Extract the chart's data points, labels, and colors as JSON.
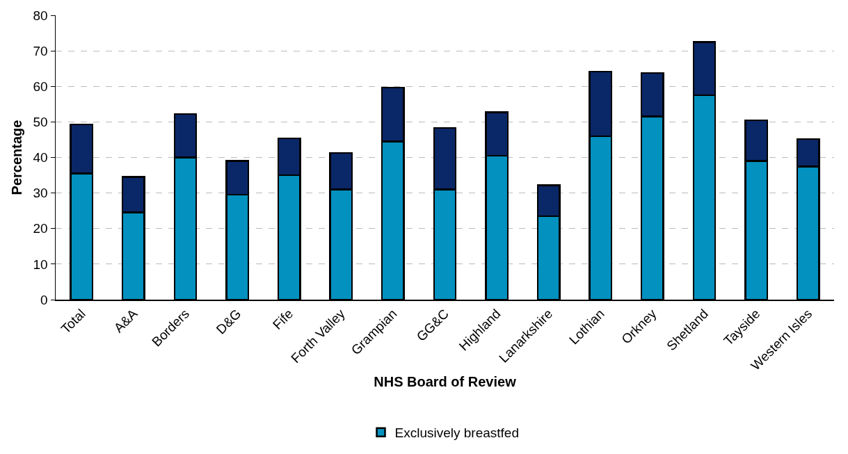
{
  "chart_data": {
    "type": "bar",
    "stacked": true,
    "xlabel": "NHS Board of Review",
    "ylabel": "Percentage",
    "categories": [
      "Total",
      "A&A",
      "Borders",
      "D&G",
      "Fife",
      "Forth Valley",
      "Grampian",
      "GG&C",
      "Highland",
      "Lanarkshire",
      "Lothian",
      "Orkney",
      "Shetland",
      "Tayside",
      "Western Isles"
    ],
    "series": [
      {
        "name": "Exclusively breastfed",
        "color": "#0391bf",
        "values": [
          35.5,
          24.5,
          40,
          29.5,
          35,
          31,
          44.5,
          31,
          40.5,
          23.5,
          46,
          51.5,
          57.5,
          39,
          37.5
        ]
      },
      {
        "color": "#0a2868",
        "values": [
          13.8,
          10,
          12.2,
          9.5,
          10.4,
          10.3,
          15.2,
          17.3,
          12.2,
          8.7,
          18.2,
          12.3,
          15,
          11.5,
          7.7
        ]
      }
    ],
    "ylim": [
      0,
      80
    ],
    "yticks": [
      0,
      10,
      20,
      30,
      40,
      50,
      60,
      70,
      80
    ],
    "grid": "y",
    "legend": "bottom"
  }
}
